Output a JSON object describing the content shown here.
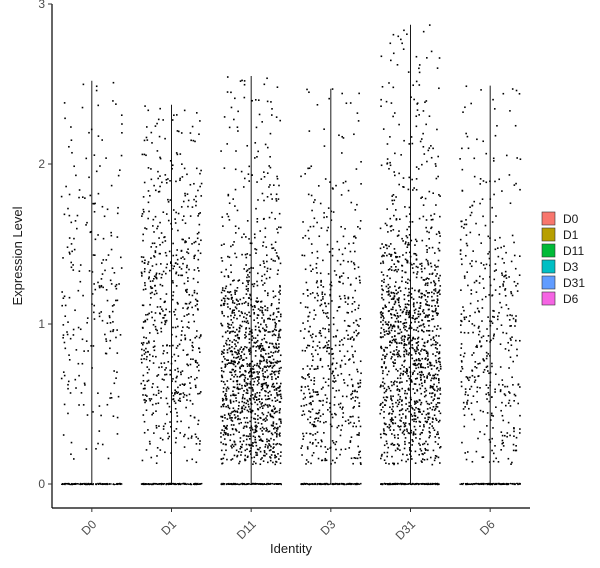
{
  "chart_data": {
    "type": "scatter",
    "subtype": "jitter-violin",
    "xlabel": "Identity",
    "ylabel": "Expression Level",
    "ylim": [
      -0.15,
      3
    ],
    "yticks": [
      0,
      1,
      2,
      3
    ],
    "categories": [
      "D0",
      "D1",
      "D11",
      "D3",
      "D31",
      "D6"
    ],
    "legend": {
      "placement": "right",
      "entries": [
        {
          "name": "D0",
          "color": "#F8766D"
        },
        {
          "name": "D1",
          "color": "#B79F00"
        },
        {
          "name": "D11",
          "color": "#00BA38"
        },
        {
          "name": "D3",
          "color": "#00BFC4"
        },
        {
          "name": "D31",
          "color": "#619CFF"
        },
        {
          "name": "D6",
          "color": "#F564E3"
        }
      ]
    },
    "groups": [
      {
        "name": "D0",
        "max": 2.52,
        "nonzero_points": 230,
        "zero_points": 200,
        "mean": 1.1,
        "sd": 0.65
      },
      {
        "name": "D1",
        "max": 2.37,
        "nonzero_points": 620,
        "zero_points": 200,
        "mean": 1.0,
        "sd": 0.6
      },
      {
        "name": "D11",
        "max": 2.55,
        "nonzero_points": 1250,
        "zero_points": 200,
        "mean": 0.55,
        "sd": 0.45
      },
      {
        "name": "D3",
        "max": 2.47,
        "nonzero_points": 560,
        "zero_points": 200,
        "mean": 0.7,
        "sd": 0.5
      },
      {
        "name": "D31",
        "max": 2.87,
        "nonzero_points": 1250,
        "zero_points": 200,
        "mean": 0.75,
        "sd": 0.5
      },
      {
        "name": "D6",
        "max": 2.49,
        "nonzero_points": 430,
        "zero_points": 200,
        "mean": 0.8,
        "sd": 0.55
      }
    ],
    "point_color": "#000000"
  }
}
